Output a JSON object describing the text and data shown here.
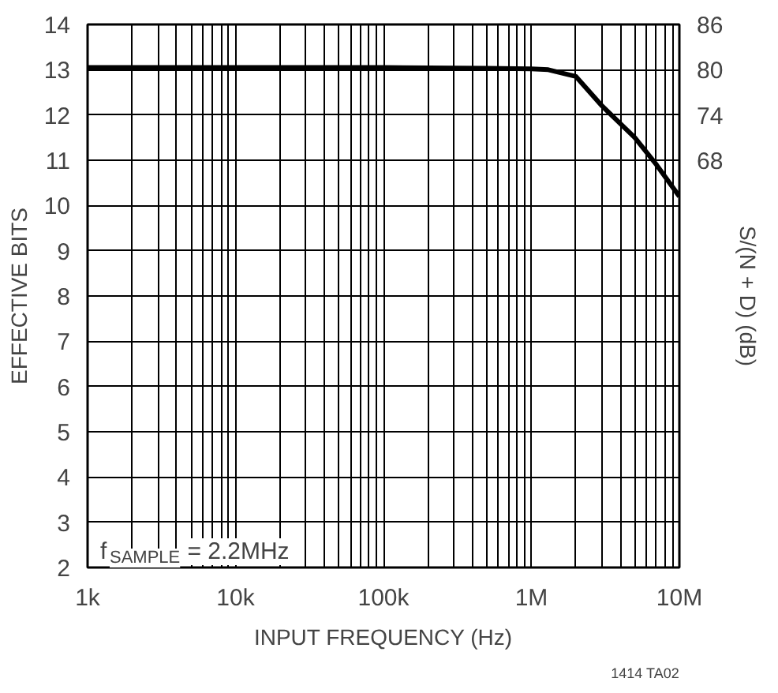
{
  "chart_data": {
    "type": "line",
    "xlabel": "INPUT FREQUENCY (Hz)",
    "ylabel": "EFFECTIVE BITS",
    "y2label": "S/(N + D) (dB)",
    "x": [
      1000,
      10000,
      100000,
      500000,
      1000000,
      1300000,
      2000000,
      3000000,
      5000000,
      7000000,
      10000000
    ],
    "series": [
      {
        "color": "#000000",
        "values": [
          13.05,
          13.05,
          13.05,
          13.03,
          13.02,
          13.0,
          12.85,
          12.2,
          11.5,
          10.9,
          10.2
        ]
      }
    ],
    "log": "x",
    "xlim": [
      1000,
      10000000
    ],
    "ylim": [
      2,
      14
    ],
    "y2lim": [
      14,
      86
    ],
    "xticks": [
      {
        "value": 1000,
        "label": "1k"
      },
      {
        "value": 2000,
        "label": null
      },
      {
        "value": 3000,
        "label": null
      },
      {
        "value": 4000,
        "label": null
      },
      {
        "value": 5000,
        "label": null
      },
      {
        "value": 6000,
        "label": null
      },
      {
        "value": 7000,
        "label": null
      },
      {
        "value": 8000,
        "label": null
      },
      {
        "value": 9000,
        "label": null
      },
      {
        "value": 10000,
        "label": "10k"
      },
      {
        "value": 20000,
        "label": null
      },
      {
        "value": 30000,
        "label": null
      },
      {
        "value": 40000,
        "label": null
      },
      {
        "value": 50000,
        "label": null
      },
      {
        "value": 60000,
        "label": null
      },
      {
        "value": 70000,
        "label": null
      },
      {
        "value": 80000,
        "label": null
      },
      {
        "value": 90000,
        "label": null
      },
      {
        "value": 100000,
        "label": "100k"
      },
      {
        "value": 200000,
        "label": null
      },
      {
        "value": 300000,
        "label": null
      },
      {
        "value": 400000,
        "label": null
      },
      {
        "value": 500000,
        "label": null
      },
      {
        "value": 600000,
        "label": null
      },
      {
        "value": 700000,
        "label": null
      },
      {
        "value": 800000,
        "label": null
      },
      {
        "value": 900000,
        "label": null
      },
      {
        "value": 1000000,
        "label": "1M"
      },
      {
        "value": 2000000,
        "label": null
      },
      {
        "value": 3000000,
        "label": null
      },
      {
        "value": 4000000,
        "label": null
      },
      {
        "value": 5000000,
        "label": null
      },
      {
        "value": 6000000,
        "label": null
      },
      {
        "value": 7000000,
        "label": null
      },
      {
        "value": 8000000,
        "label": null
      },
      {
        "value": 9000000,
        "label": null
      },
      {
        "value": 10000000,
        "label": "10M"
      }
    ],
    "yticks": [
      2,
      3,
      4,
      5,
      6,
      7,
      8,
      9,
      10,
      11,
      12,
      13,
      14
    ],
    "y2ticks": [
      68,
      74,
      80,
      86
    ],
    "grid": true,
    "marker": "none",
    "line_style": "solid",
    "annotations": [
      "f$_{SAMPLE}$ = 2.2MHz",
      "1414 TA02"
    ]
  }
}
